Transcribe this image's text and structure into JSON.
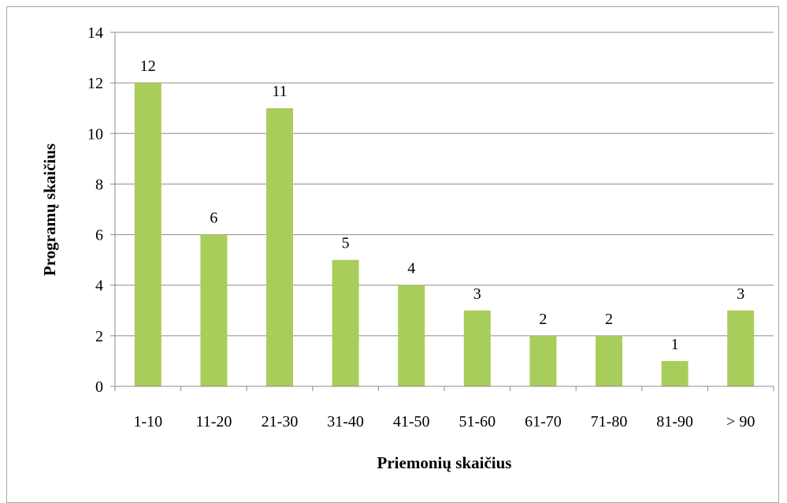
{
  "chart_data": {
    "type": "bar",
    "categories": [
      "1-10",
      "11-20",
      "21-30",
      "31-40",
      "41-50",
      "51-60",
      "61-70",
      "71-80",
      "81-90",
      "> 90"
    ],
    "values": [
      12,
      6,
      11,
      5,
      4,
      3,
      2,
      2,
      1,
      3
    ],
    "data_labels": [
      "12",
      "6",
      "11",
      "5",
      "4",
      "3",
      "2",
      "2",
      "1",
      "3"
    ],
    "xlabel": "Priemonių skaičius",
    "ylabel": "Programų skaičius",
    "ylim": [
      0,
      14
    ],
    "yticks": [
      0,
      2,
      4,
      6,
      8,
      10,
      12,
      14
    ],
    "grid": true,
    "legend": "none",
    "bar_color": "#a9cd5a",
    "gridline_color": "#8c8c8c",
    "axis_color": "#8c8c8c"
  }
}
